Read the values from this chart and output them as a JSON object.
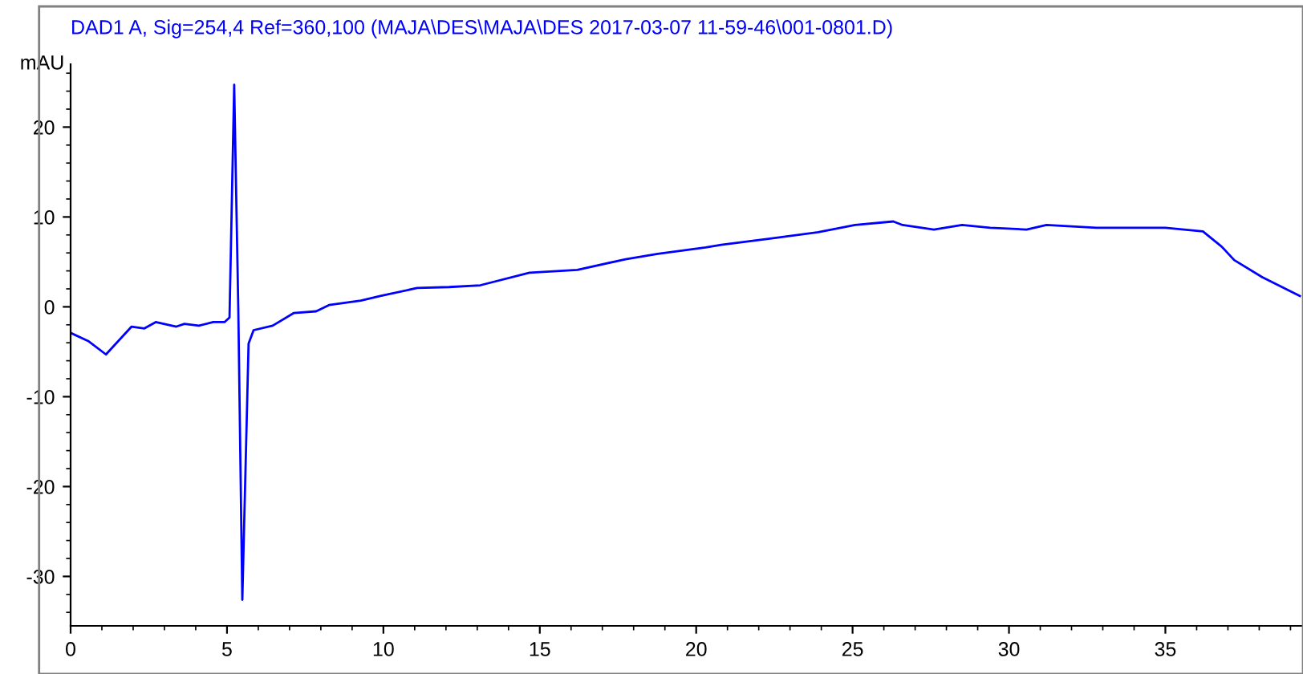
{
  "chart_data": {
    "type": "line",
    "title": "DAD1 A, Sig=254,4 Ref=360,100 (MAJA\\DES\\MAJA\\DES 2017-03-07 11-59-46\\001-0801.D)",
    "ylabel": "mAU",
    "x": [
      0,
      0.56,
      1.13,
      1.95,
      2.36,
      2.72,
      3.38,
      3.64,
      4.1,
      4.56,
      4.92,
      5.08,
      5.23,
      5.36,
      5.49,
      5.69,
      5.85,
      6.46,
      7.13,
      7.85,
      8.26,
      9.28,
      9.9,
      11.08,
      12.1,
      13.1,
      14.67,
      16.2,
      17.74,
      18.77,
      20.3,
      20.8,
      22.36,
      23.9,
      25.08,
      26.3,
      26.6,
      27.6,
      28.5,
      29.4,
      30.56,
      31.2,
      32.8,
      35.0,
      36.2,
      36.8,
      37.2,
      38.1,
      39.3
    ],
    "series": [
      {
        "color": "#0000ff",
        "values": [
          -2.9,
          -3.8,
          -5.3,
          -2.2,
          -2.4,
          -1.7,
          -2.2,
          -1.9,
          -2.1,
          -1.7,
          -1.7,
          -1.2,
          24.7,
          0,
          -32.6,
          -4.1,
          -2.6,
          -2.1,
          -0.7,
          -0.5,
          0.2,
          0.7,
          1.2,
          2.1,
          2.2,
          2.4,
          3.8,
          4.1,
          5.3,
          5.9,
          6.6,
          6.9,
          7.6,
          8.3,
          9.1,
          9.5,
          9.1,
          8.6,
          9.1,
          8.8,
          8.6,
          9.1,
          8.8,
          8.8,
          8.4,
          6.7,
          5.2,
          3.3,
          1.2
        ]
      }
    ],
    "xlim": [
      0,
      39.4
    ],
    "xticks": [
      0,
      5,
      10,
      15,
      20,
      25,
      30,
      35
    ],
    "ylim": [
      -35.5,
      27
    ],
    "yticks": [
      -30,
      -20,
      -10,
      0,
      10,
      20
    ],
    "grid": false,
    "legend": false,
    "marker": "none",
    "line_style": "solid"
  }
}
